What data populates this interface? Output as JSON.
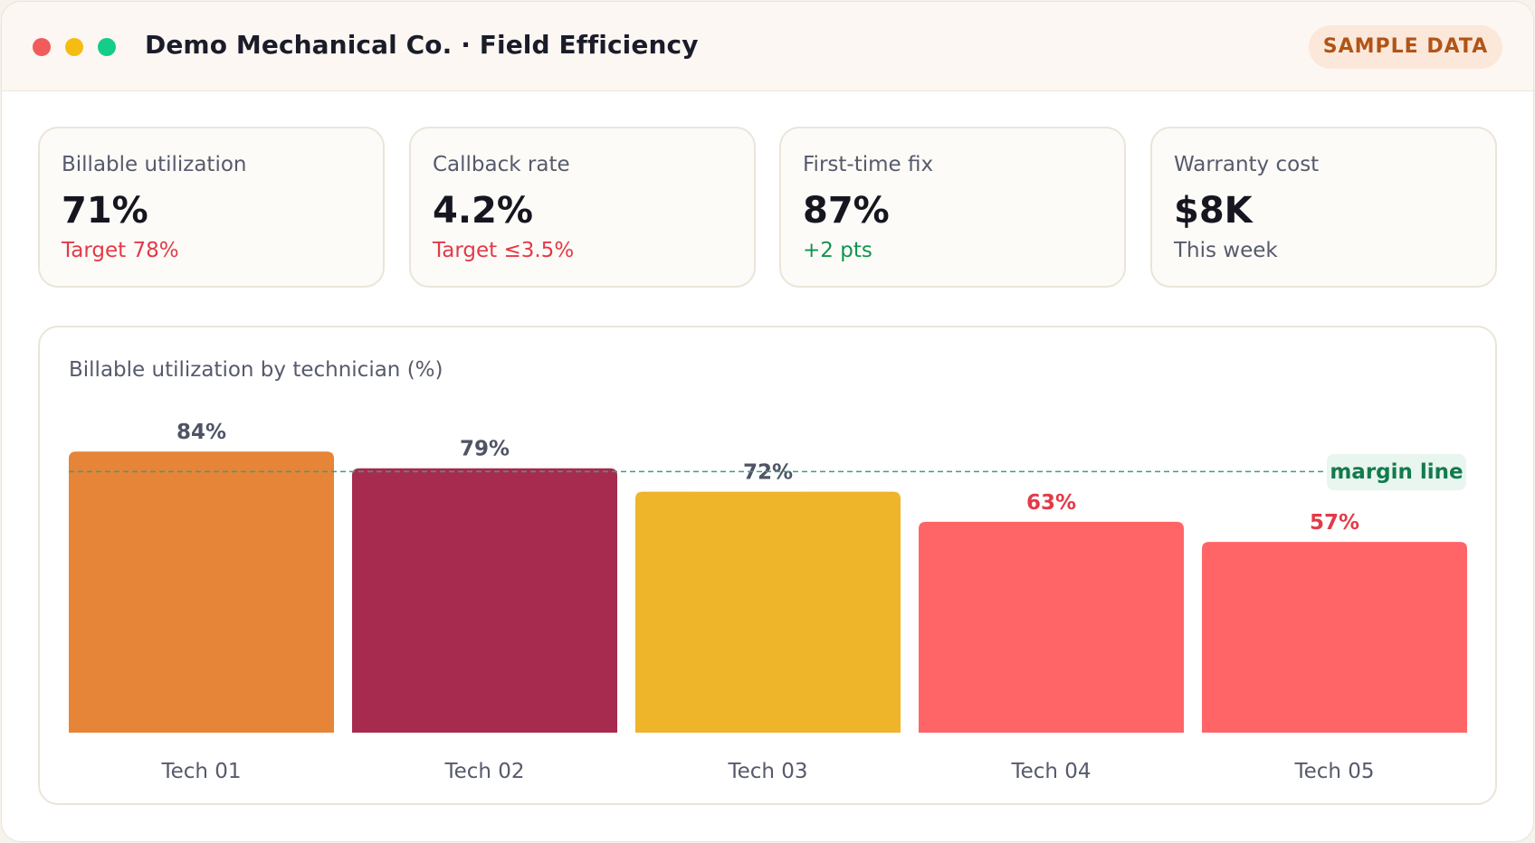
{
  "window": {
    "title": "Demo Mechanical Co. · Field Efficiency",
    "badge": "SAMPLE DATA"
  },
  "kpis": [
    {
      "label": "Billable utilization",
      "value": "71%",
      "sub": "Target 78%",
      "status": "bad"
    },
    {
      "label": "Callback rate",
      "value": "4.2%",
      "sub": "Target ≤3.5%",
      "status": "bad"
    },
    {
      "label": "First-time fix",
      "value": "87%",
      "sub": "+2 pts",
      "status": "good"
    },
    {
      "label": "Warranty cost",
      "value": "$8K",
      "sub": "This week",
      "status": "neutral"
    }
  ],
  "colors": {
    "traffic_red": "#f15b5b",
    "traffic_yellow": "#f5bd12",
    "traffic_green": "#14cd8a",
    "bad": "#e33a46",
    "good": "#13934d",
    "neutral_label": "#565a6b",
    "margin_line": "#3f9d84"
  },
  "chart_data": {
    "type": "bar",
    "title": "Billable utilization by technician (%)",
    "categories": [
      "Tech 01",
      "Tech 02",
      "Tech 03",
      "Tech 04",
      "Tech 05"
    ],
    "values": [
      84,
      79,
      72,
      63,
      57
    ],
    "value_labels": [
      "84%",
      "79%",
      "72%",
      "63%",
      "57%"
    ],
    "bar_colors": [
      "#e68437",
      "#a72b4f",
      "#eeb42a",
      "#ff6566",
      "#ff6566"
    ],
    "label_colors": [
      "#4f5364",
      "#4f5364",
      "#4f5364",
      "#e33a46",
      "#e33a46"
    ],
    "ylim": [
      0,
      100
    ],
    "reference_line": {
      "label": "margin line",
      "value": 78
    },
    "grid": false,
    "legend": "none"
  }
}
